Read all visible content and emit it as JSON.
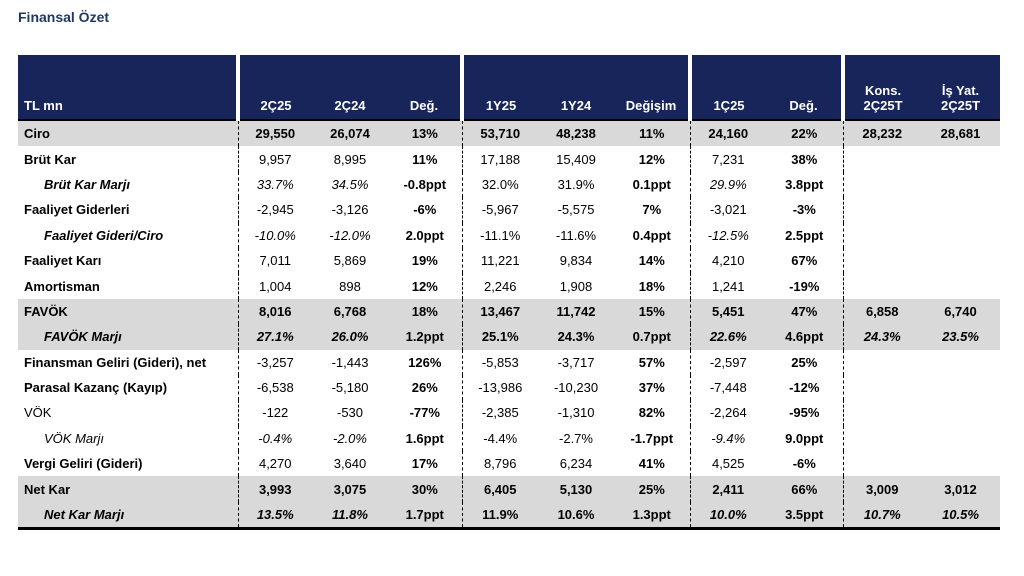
{
  "title": "Finansal Özet",
  "table": {
    "columns": [
      [
        "TL mn"
      ],
      [
        "2Ç25"
      ],
      [
        "2Ç24"
      ],
      [
        "Değ."
      ],
      [
        "1Y25"
      ],
      [
        "1Y24"
      ],
      [
        "Değişim"
      ],
      [
        "1Ç25"
      ],
      [
        "Değ."
      ],
      [
        "Kons.",
        "2Ç25T"
      ],
      [
        "İş Yat.",
        "2Ç25T"
      ]
    ],
    "rows": [
      {
        "label": "Ciro",
        "values": [
          "29,550",
          "26,074",
          "13%",
          "53,710",
          "48,238",
          "11%",
          "24,160",
          "22%",
          "28,232",
          "28,681"
        ]
      },
      {
        "label": "Brüt Kar",
        "values": [
          "9,957",
          "8,995",
          "11%",
          "17,188",
          "15,409",
          "12%",
          "7,231",
          "38%",
          null,
          null
        ]
      },
      {
        "label": "Brüt Kar Marjı",
        "values": [
          "33.7%",
          "34.5%",
          "-0.8ppt",
          "32.0%",
          "31.9%",
          "0.1ppt",
          "29.9%",
          "3.8ppt",
          null,
          null
        ]
      },
      {
        "label": "Faaliyet Giderleri",
        "values": [
          "-2,945",
          "-3,126",
          "-6%",
          "-5,967",
          "-5,575",
          "7%",
          "-3,021",
          "-3%",
          null,
          null
        ]
      },
      {
        "label": "Faaliyet Gideri/Ciro",
        "values": [
          "-10.0%",
          "-12.0%",
          "2.0ppt",
          "-11.1%",
          "-11.6%",
          "0.4ppt",
          "-12.5%",
          "2.5ppt",
          null,
          null
        ]
      },
      {
        "label": "Faaliyet Karı",
        "values": [
          "7,011",
          "5,869",
          "19%",
          "11,221",
          "9,834",
          "14%",
          "4,210",
          "67%",
          null,
          null
        ]
      },
      {
        "label": "Amortisman",
        "values": [
          "1,004",
          "898",
          "12%",
          "2,246",
          "1,908",
          "18%",
          "1,241",
          "-19%",
          null,
          null
        ]
      },
      {
        "label": "FAVÖK",
        "values": [
          "8,016",
          "6,768",
          "18%",
          "13,467",
          "11,742",
          "15%",
          "5,451",
          "47%",
          "6,858",
          "6,740"
        ]
      },
      {
        "label": "FAVÖK Marjı",
        "values": [
          "27.1%",
          "26.0%",
          "1.2ppt",
          "25.1%",
          "24.3%",
          "0.7ppt",
          "22.6%",
          "4.6ppt",
          "24.3%",
          "23.5%"
        ]
      },
      {
        "label": "Finansman Geliri (Gideri), net",
        "values": [
          "-3,257",
          "-1,443",
          "126%",
          "-5,853",
          "-3,717",
          "57%",
          "-2,597",
          "25%",
          null,
          null
        ]
      },
      {
        "label": "Parasal Kazanç (Kayıp)",
        "values": [
          "-6,538",
          "-5,180",
          "26%",
          "-13,986",
          "-10,230",
          "37%",
          "-7,448",
          "-12%",
          null,
          null
        ]
      },
      {
        "label": "VÖK",
        "values": [
          "-122",
          "-530",
          "-77%",
          "-2,385",
          "-1,310",
          "82%",
          "-2,264",
          "-95%",
          null,
          null
        ]
      },
      {
        "label": "VÖK Marjı",
        "values": [
          "-0.4%",
          "-2.0%",
          "1.6ppt",
          "-4.4%",
          "-2.7%",
          "-1.7ppt",
          "-9.4%",
          "9.0ppt",
          null,
          null
        ]
      },
      {
        "label": "Vergi Geliri (Gideri)",
        "values": [
          "4,270",
          "3,640",
          "17%",
          "8,796",
          "6,234",
          "41%",
          "4,525",
          "-6%",
          null,
          null
        ]
      },
      {
        "label": "Net Kar",
        "values": [
          "3,993",
          "3,075",
          "30%",
          "6,405",
          "5,130",
          "25%",
          "2,411",
          "66%",
          "3,009",
          "3,012"
        ]
      },
      {
        "label": "Net Kar Marjı",
        "values": [
          "13.5%",
          "11.8%",
          "1.7ppt",
          "11.9%",
          "10.6%",
          "1.3ppt",
          "10.0%",
          "3.5ppt",
          "10.7%",
          "10.5%"
        ]
      }
    ]
  }
}
